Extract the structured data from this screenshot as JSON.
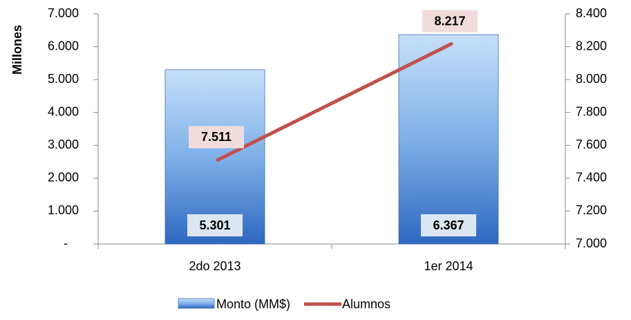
{
  "chart_data": {
    "type": "bar",
    "categories": [
      "2do 2013",
      "1er 2014"
    ],
    "ylabel": "Millones",
    "series": [
      {
        "name": "Monto (MM$)",
        "type": "bar",
        "color": "#4f81bd",
        "values": [
          5301,
          6367
        ],
        "value_labels": [
          "5.301",
          "6.367"
        ]
      },
      {
        "name": "Alumnos",
        "type": "line",
        "axis": "y2",
        "color": "#c0504d",
        "values": [
          7511,
          8217
        ],
        "value_labels": [
          "7.511",
          "8.217"
        ]
      }
    ],
    "ylim": [
      0,
      7000
    ],
    "yticks": [
      {
        "value": 0,
        "label": "-"
      },
      {
        "value": 1000,
        "label": "1.000"
      },
      {
        "value": 2000,
        "label": "2.000"
      },
      {
        "value": 3000,
        "label": "3.000"
      },
      {
        "value": 4000,
        "label": "4.000"
      },
      {
        "value": 5000,
        "label": "5.000"
      },
      {
        "value": 6000,
        "label": "6.000"
      },
      {
        "value": 7000,
        "label": "7.000"
      }
    ],
    "y2lim": [
      7000,
      8400
    ],
    "y2ticks": [
      {
        "value": 7000,
        "label": "7.000"
      },
      {
        "value": 7200,
        "label": "7.200"
      },
      {
        "value": 7400,
        "label": "7.400"
      },
      {
        "value": 7600,
        "label": "7.600"
      },
      {
        "value": 7800,
        "label": "7.800"
      },
      {
        "value": 8000,
        "label": "8.000"
      },
      {
        "value": 8200,
        "label": "8.200"
      },
      {
        "value": 8400,
        "label": "8.400"
      }
    ],
    "legend": "bottom"
  }
}
